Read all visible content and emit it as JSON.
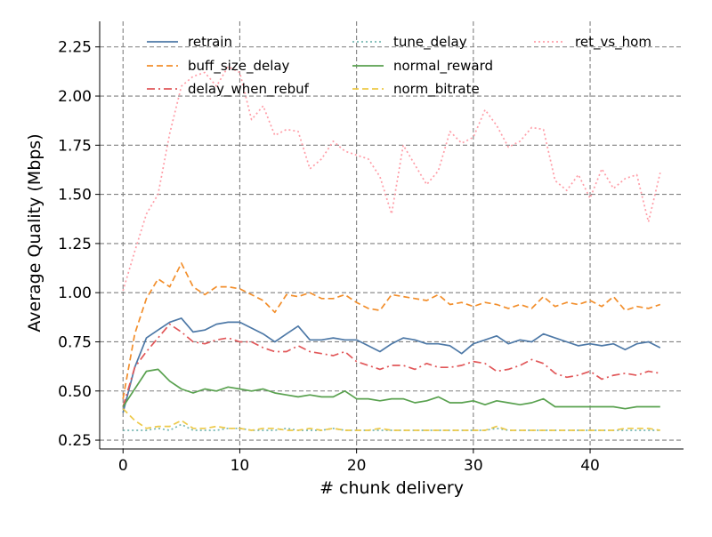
{
  "chart_data": {
    "type": "line",
    "title": "",
    "xlabel": "# chunk delivery",
    "ylabel": "Average Quality (Mbps)",
    "xlim": [
      -2,
      48
    ],
    "ylim": [
      0.205,
      2.38
    ],
    "xticks": [
      0,
      10,
      20,
      30,
      40
    ],
    "xtick_labels": [
      "0",
      "10",
      "20",
      "30",
      "40"
    ],
    "yticks": [
      0.25,
      0.5,
      0.75,
      1.0,
      1.25,
      1.5,
      1.75,
      2.0,
      2.25
    ],
    "ytick_labels": [
      "0.25",
      "0.50",
      "0.75",
      "1.00",
      "1.25",
      "1.50",
      "1.75",
      "2.00",
      "2.25"
    ],
    "grid": true,
    "legend_placement": "top",
    "x": [
      0,
      1,
      2,
      3,
      4,
      5,
      6,
      7,
      8,
      9,
      10,
      11,
      12,
      13,
      14,
      15,
      16,
      17,
      18,
      19,
      20,
      21,
      22,
      23,
      24,
      25,
      26,
      27,
      28,
      29,
      30,
      31,
      32,
      33,
      34,
      35,
      36,
      37,
      38,
      39,
      40,
      41,
      42,
      43,
      44,
      45,
      46
    ],
    "series": [
      {
        "name": "retrain",
        "color": "#4e79a7",
        "style": "solid",
        "values": [
          0.39,
          0.62,
          0.77,
          0.81,
          0.85,
          0.87,
          0.8,
          0.81,
          0.84,
          0.85,
          0.85,
          0.82,
          0.79,
          0.75,
          0.79,
          0.83,
          0.76,
          0.76,
          0.77,
          0.76,
          0.76,
          0.73,
          0.7,
          0.74,
          0.77,
          0.76,
          0.74,
          0.74,
          0.73,
          0.69,
          0.74,
          0.76,
          0.78,
          0.74,
          0.76,
          0.75,
          0.79,
          0.77,
          0.75,
          0.73,
          0.74,
          0.73,
          0.74,
          0.71,
          0.74,
          0.75,
          0.72
        ]
      },
      {
        "name": "buff_size_delay",
        "color": "#f28e2b",
        "style": "dashed",
        "values": [
          0.46,
          0.79,
          0.97,
          1.07,
          1.03,
          1.15,
          1.03,
          0.99,
          1.03,
          1.03,
          1.02,
          0.99,
          0.96,
          0.9,
          0.99,
          0.98,
          1.0,
          0.97,
          0.97,
          0.99,
          0.95,
          0.92,
          0.91,
          0.99,
          0.98,
          0.97,
          0.96,
          0.99,
          0.94,
          0.95,
          0.93,
          0.95,
          0.94,
          0.92,
          0.94,
          0.92,
          0.98,
          0.93,
          0.95,
          0.94,
          0.96,
          0.93,
          0.98,
          0.91,
          0.93,
          0.92,
          0.94
        ]
      },
      {
        "name": "delay_when_rebuf",
        "color": "#e15759",
        "style": "dashdot",
        "values": [
          0.42,
          0.62,
          0.7,
          0.77,
          0.84,
          0.8,
          0.75,
          0.74,
          0.76,
          0.77,
          0.75,
          0.75,
          0.72,
          0.7,
          0.7,
          0.73,
          0.7,
          0.69,
          0.68,
          0.7,
          0.65,
          0.63,
          0.61,
          0.63,
          0.63,
          0.61,
          0.64,
          0.62,
          0.62,
          0.63,
          0.65,
          0.64,
          0.6,
          0.61,
          0.63,
          0.66,
          0.64,
          0.59,
          0.57,
          0.58,
          0.6,
          0.56,
          0.58,
          0.59,
          0.58,
          0.6,
          0.59
        ]
      },
      {
        "name": "tune_delay",
        "color": "#76b7b2",
        "style": "dotted",
        "values": [
          0.3,
          0.3,
          0.3,
          0.31,
          0.3,
          0.33,
          0.3,
          0.3,
          0.3,
          0.31,
          0.31,
          0.3,
          0.3,
          0.3,
          0.31,
          0.3,
          0.3,
          0.3,
          0.31,
          0.3,
          0.3,
          0.3,
          0.3,
          0.3,
          0.3,
          0.3,
          0.3,
          0.3,
          0.3,
          0.3,
          0.3,
          0.3,
          0.31,
          0.3,
          0.3,
          0.3,
          0.3,
          0.3,
          0.3,
          0.3,
          0.3,
          0.3,
          0.3,
          0.3,
          0.3,
          0.3,
          0.3
        ]
      },
      {
        "name": "normal_reward",
        "color": "#59a14f",
        "style": "solid",
        "values": [
          0.42,
          0.51,
          0.6,
          0.61,
          0.55,
          0.51,
          0.49,
          0.51,
          0.5,
          0.52,
          0.51,
          0.5,
          0.51,
          0.49,
          0.48,
          0.47,
          0.48,
          0.47,
          0.47,
          0.5,
          0.46,
          0.46,
          0.45,
          0.46,
          0.46,
          0.44,
          0.45,
          0.47,
          0.44,
          0.44,
          0.45,
          0.43,
          0.45,
          0.44,
          0.43,
          0.44,
          0.46,
          0.42,
          0.42,
          0.42,
          0.42,
          0.42,
          0.42,
          0.41,
          0.42,
          0.42,
          0.42
        ]
      },
      {
        "name": "norm_bitrate",
        "color": "#edc948",
        "style": "dashed",
        "values": [
          0.41,
          0.35,
          0.31,
          0.32,
          0.32,
          0.35,
          0.31,
          0.31,
          0.32,
          0.31,
          0.31,
          0.3,
          0.31,
          0.31,
          0.3,
          0.3,
          0.31,
          0.3,
          0.31,
          0.3,
          0.3,
          0.3,
          0.31,
          0.3,
          0.3,
          0.3,
          0.3,
          0.3,
          0.3,
          0.3,
          0.3,
          0.3,
          0.32,
          0.3,
          0.3,
          0.3,
          0.3,
          0.3,
          0.3,
          0.3,
          0.3,
          0.3,
          0.3,
          0.31,
          0.31,
          0.31,
          0.3
        ]
      },
      {
        "name": "ret_vs_hom",
        "color": "#ff9da7",
        "style": "dotted",
        "values": [
          1.01,
          1.21,
          1.4,
          1.5,
          1.81,
          2.05,
          2.1,
          2.12,
          2.05,
          2.15,
          2.12,
          1.88,
          1.95,
          1.8,
          1.83,
          1.82,
          1.63,
          1.68,
          1.77,
          1.72,
          1.7,
          1.68,
          1.59,
          1.4,
          1.75,
          1.65,
          1.55,
          1.62,
          1.82,
          1.76,
          1.79,
          1.93,
          1.85,
          1.74,
          1.77,
          1.84,
          1.83,
          1.57,
          1.52,
          1.6,
          1.48,
          1.63,
          1.53,
          1.58,
          1.6,
          1.36,
          1.61
        ]
      }
    ]
  }
}
